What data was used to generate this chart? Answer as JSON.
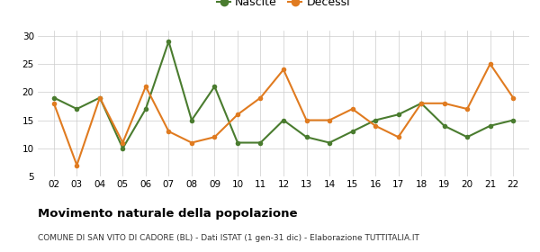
{
  "years": [
    2,
    3,
    4,
    5,
    6,
    7,
    8,
    9,
    10,
    11,
    12,
    13,
    14,
    15,
    16,
    17,
    18,
    19,
    20,
    21,
    22
  ],
  "nascite": [
    19,
    17,
    19,
    10,
    17,
    29,
    15,
    21,
    11,
    11,
    15,
    12,
    11,
    13,
    15,
    16,
    18,
    14,
    12,
    14,
    15
  ],
  "decessi": [
    18,
    7,
    19,
    11,
    21,
    13,
    11,
    12,
    16,
    19,
    24,
    15,
    15,
    17,
    14,
    12,
    18,
    18,
    17,
    25,
    19
  ],
  "nascite_color": "#4a7c2f",
  "decessi_color": "#e07b20",
  "title": "Movimento naturale della popolazione",
  "subtitle": "COMUNE DI SAN VITO DI CADORE (BL) - Dati ISTAT (1 gen-31 dic) - Elaborazione TUTTITALIA.IT",
  "ylim": [
    5,
    31
  ],
  "yticks": [
    5,
    10,
    15,
    20,
    25,
    30
  ],
  "legend_labels": [
    "Nascite",
    "Decessi"
  ],
  "marker_size": 4,
  "line_width": 1.5,
  "background_color": "#ffffff",
  "grid_color": "#cccccc"
}
